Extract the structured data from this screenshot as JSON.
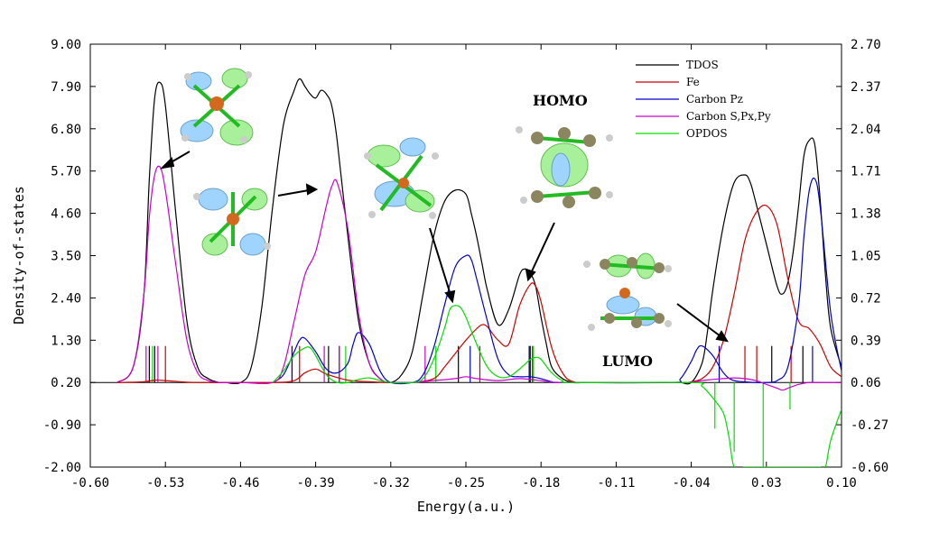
{
  "chart_data": {
    "type": "line",
    "title": "",
    "xlabel": "Energy(a.u.)",
    "ylabel": "Density-of-states",
    "xlim": [
      -0.6,
      0.1
    ],
    "ylim": [
      -2.0,
      9.0
    ],
    "y2lim": [
      -0.6,
      2.7
    ],
    "x_ticks": [
      "-0.60",
      "-0.53",
      "-0.46",
      "-0.39",
      "-0.32",
      "-0.25",
      "-0.18",
      "-0.11",
      "-0.04",
      "0.03",
      "0.10"
    ],
    "y_ticks": [
      "9.00",
      "7.90",
      "6.80",
      "5.70",
      "4.60",
      "3.50",
      "2.40",
      "1.30",
      "0.20",
      "-0.90",
      "-2.00"
    ],
    "y2_ticks": [
      "2.70",
      "2.37",
      "2.04",
      "1.71",
      "1.38",
      "1.05",
      "0.72",
      "0.39",
      "0.06",
      "-0.27",
      "-0.60"
    ],
    "baseline": 0.2,
    "legend_position": "top-right",
    "series": [
      {
        "name": "TDOS",
        "color": "#000000",
        "x": [
          -0.575,
          -0.56,
          -0.55,
          -0.545,
          -0.54,
          -0.535,
          -0.53,
          -0.52,
          -0.51,
          -0.5,
          -0.49,
          -0.48,
          -0.475,
          -0.46,
          -0.45,
          -0.44,
          -0.43,
          -0.42,
          -0.41,
          -0.405,
          -0.4,
          -0.395,
          -0.39,
          -0.385,
          -0.38,
          -0.375,
          -0.37,
          -0.36,
          -0.35,
          -0.34,
          -0.33,
          -0.32,
          -0.31,
          -0.3,
          -0.29,
          -0.28,
          -0.27,
          -0.26,
          -0.25,
          -0.245,
          -0.24,
          -0.235,
          -0.23,
          -0.22,
          -0.21,
          -0.2,
          -0.195,
          -0.19,
          -0.185,
          -0.18,
          -0.175,
          -0.17,
          -0.16,
          -0.15,
          -0.14,
          -0.13,
          -0.12,
          -0.11,
          -0.1,
          -0.09,
          -0.08,
          -0.07,
          -0.06,
          -0.05,
          -0.04,
          -0.03,
          -0.025,
          -0.02,
          -0.01,
          0.0,
          0.01,
          0.015,
          0.02,
          0.03,
          0.04,
          0.045,
          0.05,
          0.055,
          0.06,
          0.065,
          0.07,
          0.075,
          0.08,
          0.085,
          0.09,
          0.1
        ],
        "y": [
          0.2,
          0.6,
          2.5,
          5.5,
          7.6,
          8.0,
          7.4,
          4.5,
          1.8,
          0.6,
          0.3,
          0.2,
          0.2,
          0.2,
          0.6,
          2.2,
          4.8,
          6.9,
          7.8,
          8.1,
          7.9,
          7.7,
          7.6,
          7.8,
          7.7,
          7.4,
          6.5,
          4.0,
          1.8,
          0.7,
          0.3,
          0.2,
          0.4,
          1.0,
          2.5,
          4.0,
          4.9,
          5.2,
          5.1,
          4.6,
          4.0,
          3.3,
          2.6,
          1.7,
          2.1,
          3.0,
          3.15,
          3.05,
          2.7,
          1.9,
          1.2,
          0.6,
          0.3,
          0.2,
          0.2,
          0.2,
          0.2,
          0.2,
          0.2,
          0.2,
          0.2,
          0.2,
          0.2,
          0.2,
          0.2,
          0.7,
          1.5,
          2.6,
          4.3,
          5.4,
          5.6,
          5.4,
          4.9,
          3.8,
          2.7,
          2.5,
          2.8,
          3.6,
          4.8,
          6.1,
          6.5,
          6.4,
          5.0,
          3.0,
          1.6,
          0.6
        ]
      },
      {
        "name": "Fe",
        "color": "#cc0000",
        "x": [
          -0.575,
          -0.55,
          -0.54,
          -0.53,
          -0.51,
          -0.49,
          -0.43,
          -0.41,
          -0.4,
          -0.39,
          -0.38,
          -0.36,
          -0.34,
          -0.32,
          -0.3,
          -0.28,
          -0.27,
          -0.26,
          -0.25,
          -0.24,
          -0.235,
          -0.23,
          -0.22,
          -0.21,
          -0.2,
          -0.19,
          -0.185,
          -0.18,
          -0.17,
          -0.16,
          -0.15,
          -0.13,
          -0.05,
          -0.04,
          -0.03,
          -0.02,
          -0.01,
          0.0,
          0.01,
          0.02,
          0.03,
          0.04,
          0.05,
          0.06,
          0.07,
          0.08,
          0.09,
          0.1
        ],
        "y": [
          0.2,
          0.22,
          0.26,
          0.25,
          0.21,
          0.2,
          0.2,
          0.25,
          0.45,
          0.55,
          0.42,
          0.26,
          0.22,
          0.2,
          0.2,
          0.3,
          0.6,
          0.95,
          1.3,
          1.6,
          1.7,
          1.65,
          1.3,
          1.2,
          2.2,
          2.75,
          2.7,
          2.3,
          1.1,
          0.45,
          0.22,
          0.2,
          0.2,
          0.22,
          0.3,
          0.6,
          1.3,
          2.5,
          3.9,
          4.6,
          4.8,
          4.3,
          2.9,
          1.8,
          1.6,
          1.2,
          0.6,
          0.35
        ]
      },
      {
        "name": "Carbon Pz",
        "color": "#0000cc",
        "x": [
          -0.43,
          -0.42,
          -0.41,
          -0.405,
          -0.4,
          -0.39,
          -0.38,
          -0.37,
          -0.36,
          -0.355,
          -0.35,
          -0.34,
          -0.33,
          -0.32,
          -0.3,
          -0.29,
          -0.28,
          -0.27,
          -0.26,
          -0.25,
          -0.245,
          -0.24,
          -0.23,
          -0.22,
          -0.21,
          -0.2,
          -0.19,
          -0.18,
          -0.17,
          -0.16,
          -0.06,
          -0.05,
          -0.04,
          -0.035,
          -0.03,
          -0.02,
          -0.01,
          0.0,
          0.02,
          0.03,
          0.04,
          0.05,
          0.06,
          0.065,
          0.07,
          0.075,
          0.08,
          0.09,
          0.1
        ],
        "y": [
          0.2,
          0.4,
          1.0,
          1.3,
          1.35,
          1.0,
          0.55,
          0.45,
          0.7,
          1.2,
          1.5,
          1.2,
          0.5,
          0.2,
          0.2,
          0.4,
          1.1,
          2.2,
          3.2,
          3.5,
          3.4,
          2.9,
          1.8,
          0.8,
          0.4,
          0.35,
          0.35,
          0.3,
          0.22,
          0.2,
          0.2,
          0.3,
          0.75,
          1.05,
          1.15,
          0.9,
          0.45,
          0.25,
          0.2,
          0.2,
          0.25,
          0.6,
          2.2,
          4.0,
          5.2,
          5.5,
          4.8,
          2.0,
          0.5
        ]
      },
      {
        "name": "Carbon S,Px,Py",
        "color": "#cc00cc",
        "x": [
          -0.575,
          -0.56,
          -0.55,
          -0.545,
          -0.54,
          -0.535,
          -0.53,
          -0.52,
          -0.51,
          -0.5,
          -0.49,
          -0.48,
          -0.46,
          -0.43,
          -0.42,
          -0.41,
          -0.4,
          -0.39,
          -0.38,
          -0.375,
          -0.37,
          -0.36,
          -0.35,
          -0.34,
          -0.33,
          -0.32,
          -0.3,
          -0.28,
          -0.26,
          -0.25,
          -0.24,
          -0.22,
          -0.2,
          -0.18,
          -0.16,
          -0.05,
          -0.03,
          -0.02,
          -0.01,
          0.0,
          0.01,
          0.02,
          0.03,
          0.04,
          0.045,
          0.05,
          0.06,
          0.07,
          0.08,
          0.1
        ],
        "y": [
          0.2,
          0.6,
          2.5,
          4.5,
          5.6,
          5.8,
          5.2,
          3.2,
          1.3,
          0.45,
          0.25,
          0.2,
          0.2,
          0.2,
          0.6,
          1.8,
          3.0,
          3.6,
          4.8,
          5.3,
          5.4,
          4.2,
          2.0,
          0.7,
          0.3,
          0.2,
          0.2,
          0.25,
          0.3,
          0.35,
          0.3,
          0.25,
          0.3,
          0.25,
          0.2,
          0.2,
          0.25,
          0.28,
          0.3,
          0.32,
          0.3,
          0.25,
          0.15,
          0.05,
          0.0,
          0.05,
          0.15,
          0.2,
          0.2,
          0.2
        ]
      },
      {
        "name": "OPDOS",
        "color": "#00dd00",
        "x": [
          -0.43,
          -0.42,
          -0.41,
          -0.4,
          -0.395,
          -0.39,
          -0.38,
          -0.37,
          -0.36,
          -0.35,
          -0.34,
          -0.33,
          -0.32,
          -0.3,
          -0.29,
          -0.28,
          -0.27,
          -0.265,
          -0.26,
          -0.255,
          -0.25,
          -0.24,
          -0.23,
          -0.22,
          -0.21,
          -0.2,
          -0.19,
          -0.185,
          -0.18,
          -0.17,
          -0.16,
          -0.15,
          -0.04,
          -0.03,
          -0.02,
          -0.01,
          -0.005,
          0.0,
          0.01,
          0.02,
          0.03,
          0.05,
          0.06,
          0.07,
          0.075,
          0.08,
          0.085,
          0.09,
          0.1
        ],
        "y": [
          0.2,
          0.5,
          0.9,
          1.1,
          1.1,
          0.9,
          0.4,
          0.2,
          0.2,
          0.28,
          0.32,
          0.25,
          0.2,
          0.2,
          0.3,
          0.8,
          1.6,
          2.1,
          2.2,
          2.15,
          1.9,
          1.2,
          0.6,
          0.35,
          0.35,
          0.55,
          0.8,
          0.85,
          0.8,
          0.45,
          0.25,
          0.2,
          0.2,
          0.1,
          -0.2,
          -0.6,
          -1.2,
          -2.0,
          -2.0,
          -2.0,
          -2.0,
          -2.0,
          -2.0,
          -2.0,
          -2.0,
          -2.0,
          -2.0,
          -1.3,
          -0.5
        ]
      }
    ],
    "sticks": [
      {
        "series": "TDOS",
        "x": [
          -0.545,
          -0.54,
          -0.378,
          -0.368,
          -0.257,
          -0.191,
          0.035,
          0.064
        ]
      },
      {
        "series": "Fe",
        "x": [
          -0.53,
          -0.412,
          -0.405,
          -0.237,
          -0.188,
          0.01,
          0.021,
          0.053
        ]
      },
      {
        "series": "Carbon Pz",
        "x": [
          -0.412,
          -0.246,
          -0.19,
          -0.014,
          0.073
        ]
      },
      {
        "series": "Carbon S,Px,Py",
        "x": [
          -0.548,
          -0.537,
          -0.382,
          -0.368,
          -0.288
        ]
      },
      {
        "series": "OPDOS",
        "x": [
          -0.542,
          -0.362,
          -0.278,
          -0.187
        ]
      }
    ],
    "mo_label_text": [
      "HOMO",
      "LUMO"
    ]
  }
}
